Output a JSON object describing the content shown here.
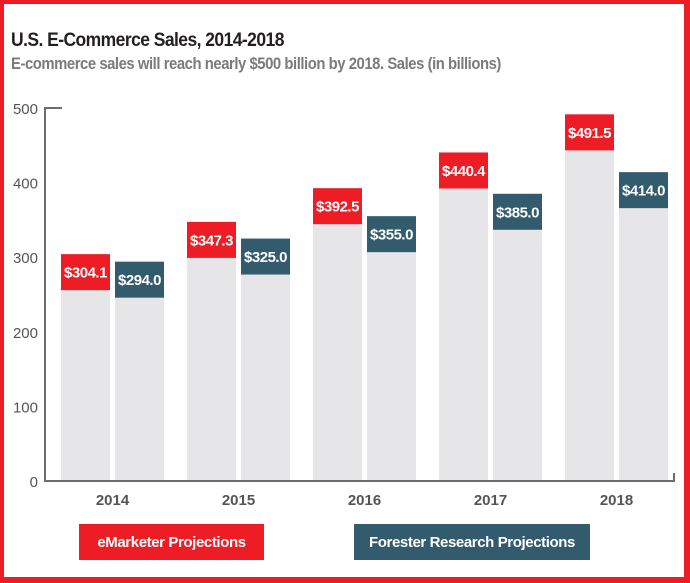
{
  "chart_data": {
    "type": "bar",
    "title": "U.S. E-Commerce Sales, 2014-2018",
    "subtitle": "E-commerce sales will reach nearly $500 billion by 2018. Sales (in billions)",
    "xlabel": "",
    "ylabel": "",
    "ylim": [
      0,
      500
    ],
    "yticks": [
      0,
      100,
      200,
      300,
      400,
      500
    ],
    "categories": [
      "2014",
      "2015",
      "2016",
      "2017",
      "2018"
    ],
    "series": [
      {
        "name": "eMarketer Projections",
        "color": "#ee1c25",
        "values": [
          304.1,
          347.3,
          392.5,
          440.4,
          491.5
        ],
        "labels": [
          "$304.1",
          "$347.3",
          "$392.5",
          "$440.4",
          "$491.5"
        ]
      },
      {
        "name": "Forester Research Projections",
        "color": "#335b6e",
        "values": [
          294.0,
          325.0,
          355.0,
          385.0,
          414.0
        ],
        "labels": [
          "$294.0",
          "$325.0",
          "$355.0",
          "$385.0",
          "$414.0"
        ]
      }
    ],
    "bar_background_color": "#e6e6e8",
    "grid": false,
    "legend_position": "bottom"
  },
  "border_color": "#ee1c25"
}
